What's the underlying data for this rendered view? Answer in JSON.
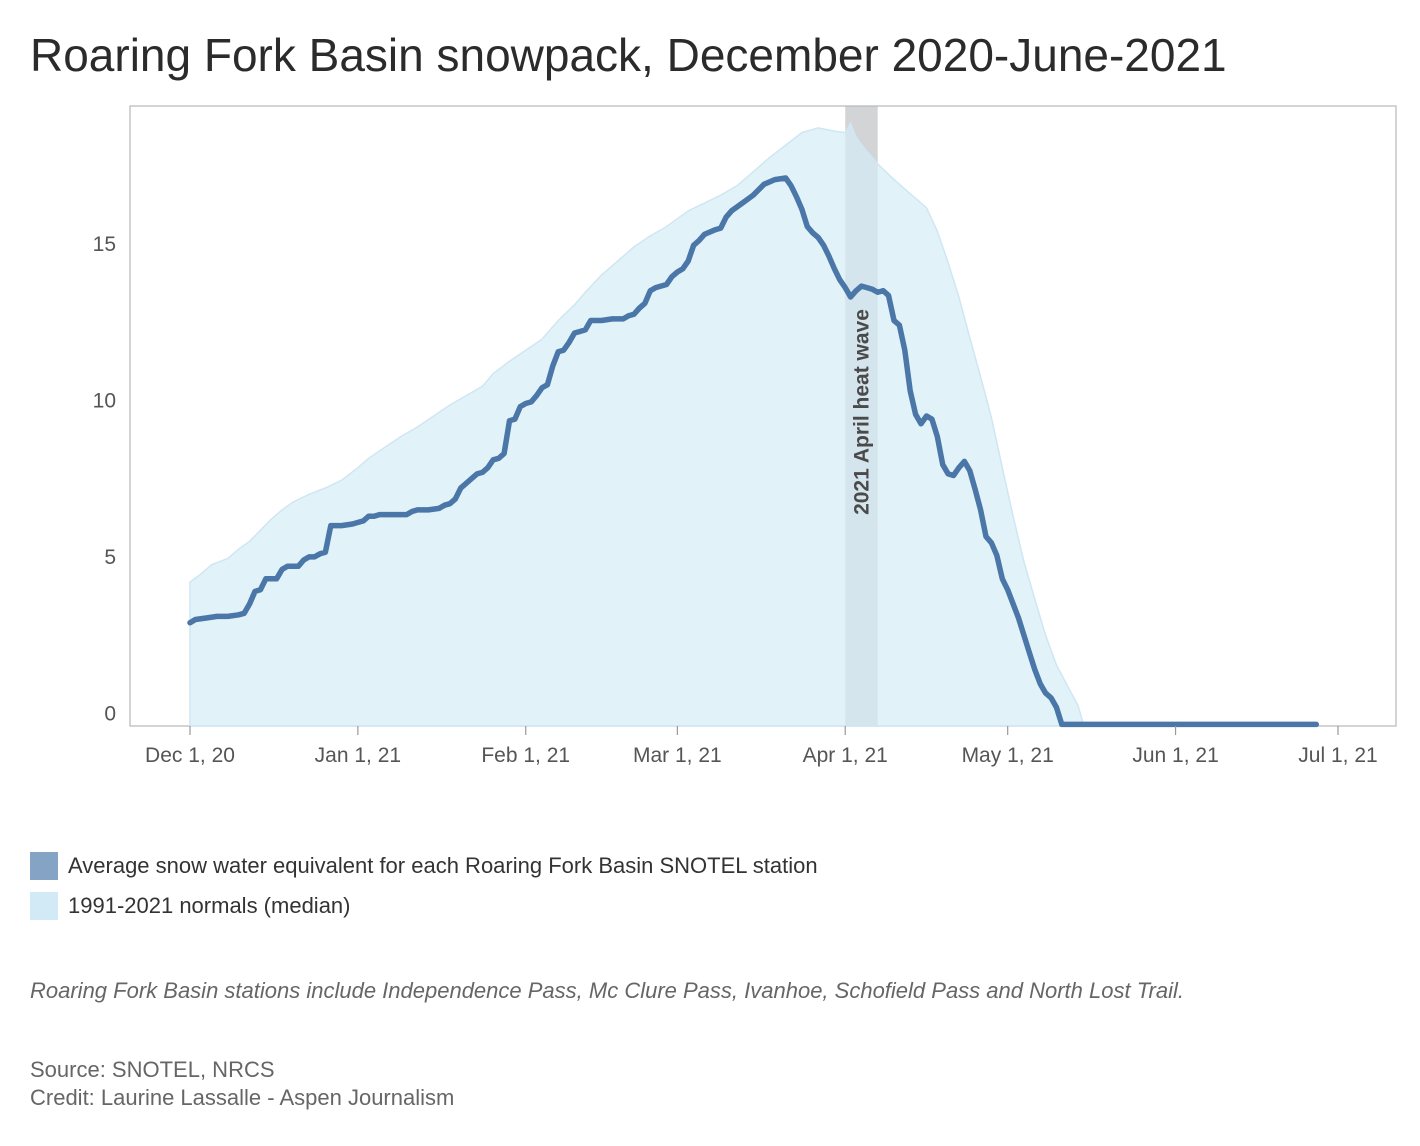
{
  "chart_data": {
    "type": "area",
    "title": "Roaring Fork Basin snowpack, December 2020-June-2021",
    "xlabel": "",
    "ylabel": "",
    "x_ticks": [
      {
        "date": "2020-12-01",
        "label": "Dec 1, 20"
      },
      {
        "date": "2021-01-01",
        "label": "Jan 1, 21"
      },
      {
        "date": "2021-02-01",
        "label": "Feb 1, 21"
      },
      {
        "date": "2021-03-01",
        "label": "Mar 1, 21"
      },
      {
        "date": "2021-04-01",
        "label": "Apr 1, 21"
      },
      {
        "date": "2021-05-01",
        "label": "May 1, 21"
      },
      {
        "date": "2021-06-01",
        "label": "Jun 1, 21"
      },
      {
        "date": "2021-07-01",
        "label": "Jul 1, 21"
      }
    ],
    "y_ticks": [
      0,
      5,
      10,
      15
    ],
    "ylim": [
      -0.4,
      19.4
    ],
    "grid": false,
    "legend_position": "bottom-left",
    "band": {
      "start": "2021-04-01",
      "end": "2021-04-07",
      "label": "2021 April heat wave"
    },
    "series": [
      {
        "name": "Average snow water equivalent for each Roaring Fork Basin SNOTEL station",
        "kind": "line",
        "color": "#4a76a8",
        "points": [
          [
            "2020-12-01",
            2.9
          ],
          [
            "2020-12-02",
            3.0
          ],
          [
            "2020-12-04",
            3.05
          ],
          [
            "2020-12-06",
            3.1
          ],
          [
            "2020-12-08",
            3.1
          ],
          [
            "2020-12-10",
            3.15
          ],
          [
            "2020-12-11",
            3.2
          ],
          [
            "2020-12-12",
            3.5
          ],
          [
            "2020-12-13",
            3.9
          ],
          [
            "2020-12-14",
            3.95
          ],
          [
            "2020-12-15",
            4.3
          ],
          [
            "2020-12-17",
            4.3
          ],
          [
            "2020-12-18",
            4.6
          ],
          [
            "2020-12-19",
            4.7
          ],
          [
            "2020-12-21",
            4.7
          ],
          [
            "2020-12-22",
            4.9
          ],
          [
            "2020-12-23",
            5.0
          ],
          [
            "2020-12-24",
            5.0
          ],
          [
            "2020-12-25",
            5.1
          ],
          [
            "2020-12-26",
            5.15
          ],
          [
            "2020-12-27",
            6.0
          ],
          [
            "2020-12-29",
            6.0
          ],
          [
            "2020-12-31",
            6.05
          ],
          [
            "2021-01-02",
            6.15
          ],
          [
            "2021-01-03",
            6.3
          ],
          [
            "2021-01-04",
            6.3
          ],
          [
            "2021-01-05",
            6.35
          ],
          [
            "2021-01-07",
            6.35
          ],
          [
            "2021-01-09",
            6.35
          ],
          [
            "2021-01-10",
            6.35
          ],
          [
            "2021-01-11",
            6.45
          ],
          [
            "2021-01-12",
            6.5
          ],
          [
            "2021-01-14",
            6.5
          ],
          [
            "2021-01-16",
            6.55
          ],
          [
            "2021-01-17",
            6.65
          ],
          [
            "2021-01-18",
            6.7
          ],
          [
            "2021-01-19",
            6.85
          ],
          [
            "2021-01-20",
            7.2
          ],
          [
            "2021-01-21",
            7.35
          ],
          [
            "2021-01-22",
            7.5
          ],
          [
            "2021-01-23",
            7.65
          ],
          [
            "2021-01-24",
            7.7
          ],
          [
            "2021-01-25",
            7.85
          ],
          [
            "2021-01-26",
            8.1
          ],
          [
            "2021-01-27",
            8.15
          ],
          [
            "2021-01-28",
            8.3
          ],
          [
            "2021-01-29",
            9.35
          ],
          [
            "2021-01-30",
            9.4
          ],
          [
            "2021-01-31",
            9.8
          ],
          [
            "2021-02-01",
            9.9
          ],
          [
            "2021-02-02",
            9.95
          ],
          [
            "2021-02-03",
            10.15
          ],
          [
            "2021-02-04",
            10.4
          ],
          [
            "2021-02-05",
            10.5
          ],
          [
            "2021-02-06",
            11.1
          ],
          [
            "2021-02-07",
            11.55
          ],
          [
            "2021-02-08",
            11.6
          ],
          [
            "2021-02-09",
            11.85
          ],
          [
            "2021-02-10",
            12.15
          ],
          [
            "2021-02-11",
            12.2
          ],
          [
            "2021-02-12",
            12.25
          ],
          [
            "2021-02-13",
            12.55
          ],
          [
            "2021-02-15",
            12.55
          ],
          [
            "2021-02-17",
            12.6
          ],
          [
            "2021-02-19",
            12.6
          ],
          [
            "2021-02-20",
            12.7
          ],
          [
            "2021-02-21",
            12.75
          ],
          [
            "2021-02-22",
            12.95
          ],
          [
            "2021-02-23",
            13.1
          ],
          [
            "2021-02-24",
            13.5
          ],
          [
            "2021-02-25",
            13.6
          ],
          [
            "2021-02-27",
            13.7
          ],
          [
            "2021-02-28",
            13.95
          ],
          [
            "2021-03-01",
            14.1
          ],
          [
            "2021-03-02",
            14.2
          ],
          [
            "2021-03-03",
            14.45
          ],
          [
            "2021-03-04",
            14.95
          ],
          [
            "2021-03-05",
            15.1
          ],
          [
            "2021-03-06",
            15.3
          ],
          [
            "2021-03-08",
            15.45
          ],
          [
            "2021-03-09",
            15.5
          ],
          [
            "2021-03-10",
            15.85
          ],
          [
            "2021-03-11",
            16.05
          ],
          [
            "2021-03-13",
            16.3
          ],
          [
            "2021-03-15",
            16.55
          ],
          [
            "2021-03-17",
            16.9
          ],
          [
            "2021-03-19",
            17.05
          ],
          [
            "2021-03-21",
            17.1
          ],
          [
            "2021-03-22",
            16.85
          ],
          [
            "2021-03-23",
            16.5
          ],
          [
            "2021-03-24",
            16.1
          ],
          [
            "2021-03-25",
            15.55
          ],
          [
            "2021-03-26",
            15.35
          ],
          [
            "2021-03-27",
            15.2
          ],
          [
            "2021-03-28",
            14.95
          ],
          [
            "2021-03-29",
            14.6
          ],
          [
            "2021-03-30",
            14.2
          ],
          [
            "2021-03-31",
            13.85
          ],
          [
            "2021-04-01",
            13.6
          ],
          [
            "2021-04-02",
            13.3
          ],
          [
            "2021-04-03",
            13.5
          ],
          [
            "2021-04-04",
            13.65
          ],
          [
            "2021-04-05",
            13.6
          ],
          [
            "2021-04-06",
            13.55
          ],
          [
            "2021-04-07",
            13.45
          ],
          [
            "2021-04-08",
            13.5
          ],
          [
            "2021-04-09",
            13.35
          ],
          [
            "2021-04-10",
            12.55
          ],
          [
            "2021-04-11",
            12.4
          ],
          [
            "2021-04-12",
            11.6
          ],
          [
            "2021-04-13",
            10.3
          ],
          [
            "2021-04-14",
            9.55
          ],
          [
            "2021-04-15",
            9.25
          ],
          [
            "2021-04-16",
            9.5
          ],
          [
            "2021-04-17",
            9.4
          ],
          [
            "2021-04-18",
            8.85
          ],
          [
            "2021-04-19",
            7.95
          ],
          [
            "2021-04-20",
            7.65
          ],
          [
            "2021-04-21",
            7.6
          ],
          [
            "2021-04-22",
            7.85
          ],
          [
            "2021-04-23",
            8.05
          ],
          [
            "2021-04-24",
            7.75
          ],
          [
            "2021-04-25",
            7.15
          ],
          [
            "2021-04-26",
            6.5
          ],
          [
            "2021-04-27",
            5.65
          ],
          [
            "2021-04-28",
            5.45
          ],
          [
            "2021-04-29",
            5.05
          ],
          [
            "2021-04-30",
            4.3
          ],
          [
            "2021-05-01",
            3.95
          ],
          [
            "2021-05-02",
            3.5
          ],
          [
            "2021-05-03",
            3.05
          ],
          [
            "2021-05-04",
            2.5
          ],
          [
            "2021-05-05",
            1.95
          ],
          [
            "2021-05-06",
            1.4
          ],
          [
            "2021-05-07",
            0.95
          ],
          [
            "2021-05-08",
            0.65
          ],
          [
            "2021-05-09",
            0.5
          ],
          [
            "2021-05-10",
            0.2
          ],
          [
            "2021-05-11",
            -0.35
          ],
          [
            "2021-05-20",
            -0.35
          ],
          [
            "2021-06-01",
            -0.35
          ],
          [
            "2021-06-10",
            -0.35
          ],
          [
            "2021-06-27",
            -0.35
          ]
        ]
      },
      {
        "name": "1991-2021 normals (median)",
        "kind": "area",
        "color": "#d6ecf7",
        "points": [
          [
            "2020-12-01",
            4.2
          ],
          [
            "2020-12-03",
            4.45
          ],
          [
            "2020-12-05",
            4.75
          ],
          [
            "2020-12-08",
            4.95
          ],
          [
            "2020-12-10",
            5.25
          ],
          [
            "2020-12-12",
            5.5
          ],
          [
            "2020-12-14",
            5.85
          ],
          [
            "2020-12-16",
            6.2
          ],
          [
            "2020-12-18",
            6.5
          ],
          [
            "2020-12-20",
            6.75
          ],
          [
            "2020-12-23",
            7.0
          ],
          [
            "2020-12-26",
            7.2
          ],
          [
            "2020-12-29",
            7.45
          ],
          [
            "2021-01-01",
            7.85
          ],
          [
            "2021-01-03",
            8.15
          ],
          [
            "2021-01-06",
            8.5
          ],
          [
            "2021-01-09",
            8.85
          ],
          [
            "2021-01-12",
            9.15
          ],
          [
            "2021-01-15",
            9.5
          ],
          [
            "2021-01-18",
            9.85
          ],
          [
            "2021-01-21",
            10.15
          ],
          [
            "2021-01-24",
            10.45
          ],
          [
            "2021-01-26",
            10.85
          ],
          [
            "2021-01-29",
            11.25
          ],
          [
            "2021-02-01",
            11.6
          ],
          [
            "2021-02-04",
            11.95
          ],
          [
            "2021-02-07",
            12.55
          ],
          [
            "2021-02-10",
            13.05
          ],
          [
            "2021-02-12",
            13.45
          ],
          [
            "2021-02-15",
            14.0
          ],
          [
            "2021-02-18",
            14.45
          ],
          [
            "2021-02-21",
            14.9
          ],
          [
            "2021-02-24",
            15.25
          ],
          [
            "2021-02-27",
            15.55
          ],
          [
            "2021-03-01",
            15.8
          ],
          [
            "2021-03-03",
            16.05
          ],
          [
            "2021-03-06",
            16.3
          ],
          [
            "2021-03-09",
            16.55
          ],
          [
            "2021-03-12",
            16.85
          ],
          [
            "2021-03-15",
            17.3
          ],
          [
            "2021-03-18",
            17.75
          ],
          [
            "2021-03-21",
            18.15
          ],
          [
            "2021-03-24",
            18.55
          ],
          [
            "2021-03-27",
            18.7
          ],
          [
            "2021-03-30",
            18.6
          ],
          [
            "2021-04-01",
            18.55
          ],
          [
            "2021-04-02",
            18.85
          ],
          [
            "2021-04-03",
            18.4
          ],
          [
            "2021-04-05",
            17.95
          ],
          [
            "2021-04-07",
            17.55
          ],
          [
            "2021-04-10",
            17.05
          ],
          [
            "2021-04-13",
            16.6
          ],
          [
            "2021-04-16",
            16.15
          ],
          [
            "2021-04-18",
            15.4
          ],
          [
            "2021-04-20",
            14.4
          ],
          [
            "2021-04-22",
            13.3
          ],
          [
            "2021-04-24",
            12.0
          ],
          [
            "2021-04-26",
            10.75
          ],
          [
            "2021-04-28",
            9.45
          ],
          [
            "2021-04-30",
            7.85
          ],
          [
            "2021-05-02",
            6.3
          ],
          [
            "2021-05-04",
            4.85
          ],
          [
            "2021-05-06",
            3.65
          ],
          [
            "2021-05-08",
            2.5
          ],
          [
            "2021-05-10",
            1.55
          ],
          [
            "2021-05-12",
            0.9
          ],
          [
            "2021-05-14",
            0.25
          ],
          [
            "2021-05-15",
            -0.35
          ],
          [
            "2021-05-20",
            -0.35
          ],
          [
            "2021-06-01",
            -0.35
          ],
          [
            "2021-06-27",
            -0.35
          ]
        ]
      }
    ]
  },
  "legend": {
    "items": [
      {
        "label": "Average snow water equivalent for each Roaring Fork Basin SNOTEL station",
        "color": "#84a3c5"
      },
      {
        "label": "1991-2021 normals (median)",
        "color": "#d2e9f6"
      }
    ]
  },
  "note": "Roaring Fork Basin stations include Independence Pass, Mc Clure Pass, Ivanhoe, Schofield Pass and North Lost Trail.",
  "source": {
    "source_line": "Source: SNOTEL, NRCS",
    "credit_line": "Credit: Laurine Lassalle - Aspen Journalism"
  }
}
